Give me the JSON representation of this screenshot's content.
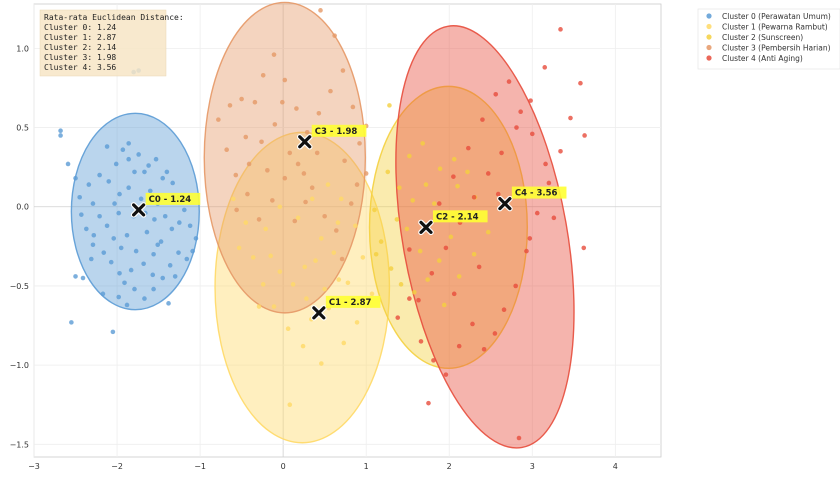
{
  "chart_data": {
    "type": "scatter",
    "title": "",
    "xlabel": "",
    "ylabel": "",
    "xlim": [
      -3.0,
      4.55
    ],
    "ylim": [
      -1.58,
      1.28
    ],
    "grid": true,
    "x_ticks": [
      -3,
      -2,
      -1,
      0,
      1,
      2,
      3,
      4
    ],
    "y_ticks": [
      -1.5,
      -1.0,
      -0.5,
      0.0,
      0.5,
      1.0
    ],
    "x_tick_labels": [
      "−3",
      "−2",
      "−1",
      "0",
      "1",
      "2",
      "3",
      "4"
    ],
    "y_tick_labels": [
      "−1.5",
      "−1.0",
      "−0.5",
      "0.0",
      "0.5",
      "1.0"
    ],
    "legend_position": "outside-right",
    "stats_box": {
      "lines": [
        "Rata-rata Euclidean Distance:",
        "Cluster 0: 1.24",
        "Cluster 1: 2.87",
        "Cluster 2: 2.14",
        "Cluster 3: 1.98",
        "Cluster 4: 3.56"
      ]
    },
    "series": [
      {
        "name": "Cluster 0 (Perawatan Umum)",
        "color": "#5b9bd5",
        "centroid": {
          "x": -1.74,
          "y": -0.02,
          "label": "C0 - 1.24"
        },
        "ellipse": {
          "cx": -1.78,
          "cy": -0.03,
          "rx": 0.77,
          "ry": 0.62,
          "angle": 0
        },
        "points": [
          [
            -2.68,
            0.48
          ],
          [
            -2.68,
            0.45
          ],
          [
            -2.59,
            0.27
          ],
          [
            -2.5,
            0.18
          ],
          [
            -2.45,
            0.06
          ],
          [
            -2.34,
            0.14
          ],
          [
            -2.21,
            0.2
          ],
          [
            -2.12,
            0.38
          ],
          [
            -2.01,
            0.27
          ],
          [
            -1.93,
            0.36
          ],
          [
            -1.86,
            0.4
          ],
          [
            -1.86,
            0.3
          ],
          [
            -1.79,
            0.22
          ],
          [
            -1.74,
            0.33
          ],
          [
            -1.67,
            0.22
          ],
          [
            -1.62,
            0.26
          ],
          [
            -1.53,
            0.3
          ],
          [
            -1.45,
            0.18
          ],
          [
            -1.33,
            0.15
          ],
          [
            -1.26,
            0.06
          ],
          [
            -1.19,
            -0.02
          ],
          [
            -1.12,
            -0.12
          ],
          [
            -1.05,
            -0.2
          ],
          [
            -1.09,
            -0.28
          ],
          [
            -1.16,
            -0.33
          ],
          [
            -1.26,
            -0.29
          ],
          [
            -1.36,
            -0.37
          ],
          [
            -1.45,
            -0.45
          ],
          [
            -1.56,
            -0.52
          ],
          [
            -1.67,
            -0.58
          ],
          [
            -1.79,
            -0.52
          ],
          [
            -1.91,
            -0.48
          ],
          [
            -1.97,
            -0.42
          ],
          [
            -2.07,
            -0.35
          ],
          [
            -2.16,
            -0.29
          ],
          [
            -2.31,
            -0.33
          ],
          [
            -2.41,
            -0.45
          ],
          [
            -2.5,
            -0.44
          ],
          [
            -2.55,
            -0.73
          ],
          [
            -2.05,
            -0.79
          ],
          [
            -1.98,
            -0.04
          ],
          [
            -2.21,
            -0.06
          ],
          [
            -2.29,
            0.02
          ],
          [
            -2.43,
            -0.05
          ],
          [
            -2.37,
            -0.14
          ],
          [
            -2.28,
            -0.18
          ],
          [
            -2.12,
            -0.12
          ],
          [
            -2.04,
            -0.2
          ],
          [
            -1.95,
            -0.26
          ],
          [
            -1.88,
            -0.18
          ],
          [
            -1.8,
            -0.06
          ],
          [
            -1.71,
            0.05
          ],
          [
            -1.6,
            0.1
          ],
          [
            -1.51,
            0.02
          ],
          [
            -1.42,
            -0.06
          ],
          [
            -1.34,
            -0.14
          ],
          [
            -1.47,
            -0.22
          ],
          [
            -1.56,
            -0.3
          ],
          [
            -1.68,
            -0.36
          ],
          [
            -1.77,
            -0.28
          ],
          [
            -1.64,
            -0.16
          ],
          [
            -1.55,
            -0.08
          ],
          [
            -1.86,
            0.12
          ],
          [
            -1.97,
            0.08
          ],
          [
            -2.1,
            0.16
          ],
          [
            -1.4,
            0.22
          ],
          [
            -1.3,
            -0.44
          ],
          [
            -1.38,
            -0.61
          ],
          [
            -1.25,
            -0.1
          ],
          [
            -1.74,
            0.86
          ],
          [
            -1.8,
            0.85
          ],
          [
            -2.17,
            -0.55
          ],
          [
            -1.88,
            -0.62
          ],
          [
            -1.57,
            -0.43
          ],
          [
            -2.29,
            -0.24
          ],
          [
            -1.98,
            -0.57
          ],
          [
            -1.51,
            -0.24
          ],
          [
            -1.83,
            -0.4
          ],
          [
            -2.03,
            0.02
          ],
          [
            -1.66,
            -0.04
          ]
        ]
      },
      {
        "name": "Cluster 1 (Pewarna Rambut)",
        "color": "#ffd966",
        "centroid": {
          "x": 0.43,
          "y": -0.67,
          "label": "C1 - 2.87"
        },
        "ellipse": {
          "cx": 0.23,
          "cy": -0.51,
          "rx": 1.05,
          "ry": 0.98,
          "angle": 0
        },
        "points": [
          [
            -0.6,
            0.05
          ],
          [
            -0.45,
            -0.1
          ],
          [
            -0.36,
            -0.32
          ],
          [
            -0.24,
            -0.49
          ],
          [
            -0.11,
            -0.63
          ],
          [
            0.06,
            -0.77
          ],
          [
            0.24,
            -0.88
          ],
          [
            0.34,
            -0.71
          ],
          [
            0.5,
            -0.52
          ],
          [
            0.67,
            -0.46
          ],
          [
            0.78,
            -0.48
          ],
          [
            0.61,
            -0.29
          ],
          [
            0.46,
            -0.2
          ],
          [
            0.26,
            -0.38
          ],
          [
            0.12,
            -0.49
          ],
          [
            -0.04,
            -0.41
          ],
          [
            -0.21,
            -0.14
          ],
          [
            -0.04,
            0.0
          ],
          [
            0.18,
            -0.07
          ],
          [
            0.35,
            0.05
          ],
          [
            0.54,
            0.14
          ],
          [
            0.7,
            0.05
          ],
          [
            0.87,
            -0.12
          ],
          [
            0.96,
            -0.32
          ],
          [
            1.07,
            -0.55
          ],
          [
            0.89,
            -0.73
          ],
          [
            0.73,
            -0.86
          ],
          [
            0.46,
            -0.99
          ],
          [
            0.08,
            -1.25
          ],
          [
            0.28,
            -0.58
          ],
          [
            -0.29,
            -0.63
          ],
          [
            0.55,
            -0.64
          ],
          [
            -0.53,
            -0.26
          ],
          [
            0.39,
            -0.34
          ],
          [
            0.66,
            -0.1
          ],
          [
            -0.15,
            -0.31
          ]
        ]
      },
      {
        "name": "Cluster 2 (Sunscreen)",
        "color": "#f4d03f",
        "centroid": {
          "x": 1.72,
          "y": -0.13,
          "label": "C2 - 2.14"
        },
        "ellipse": {
          "cx": 1.99,
          "cy": -0.13,
          "rx": 0.95,
          "ry": 0.89,
          "angle": 0
        },
        "points": [
          [
            1.1,
            -0.02
          ],
          [
            1.18,
            -0.22
          ],
          [
            1.3,
            -0.39
          ],
          [
            1.42,
            -0.49
          ],
          [
            1.58,
            -0.54
          ],
          [
            1.74,
            -0.46
          ],
          [
            1.88,
            -0.34
          ],
          [
            2.02,
            -0.19
          ],
          [
            2.17,
            -0.06
          ],
          [
            2.31,
            0.06
          ],
          [
            2.22,
            0.22
          ],
          [
            2.06,
            0.3
          ],
          [
            1.89,
            0.24
          ],
          [
            1.72,
            0.14
          ],
          [
            1.56,
            0.04
          ],
          [
            1.4,
            0.12
          ],
          [
            1.52,
            0.32
          ],
          [
            1.68,
            0.4
          ],
          [
            1.49,
            -0.14
          ],
          [
            1.65,
            -0.28
          ],
          [
            1.94,
            -0.62
          ],
          [
            2.12,
            -0.44
          ],
          [
            2.3,
            -0.3
          ],
          [
            2.47,
            -0.16
          ],
          [
            1.26,
            0.22
          ],
          [
            1.12,
            -0.3
          ],
          [
            1.82,
            0.02
          ],
          [
            1.37,
            -0.08
          ],
          [
            2.1,
            0.13
          ],
          [
            1.28,
            0.64
          ]
        ]
      },
      {
        "name": "Cluster 3 (Pembersih Harian)",
        "color": "#e59866",
        "centroid": {
          "x": 0.26,
          "y": 0.41,
          "label": "C3 - 1.98"
        },
        "ellipse": {
          "cx": 0.02,
          "cy": 0.31,
          "rx": 0.97,
          "ry": 0.98,
          "angle": 0
        },
        "points": [
          [
            -0.78,
            0.55
          ],
          [
            -0.68,
            0.36
          ],
          [
            -0.57,
            0.2
          ],
          [
            -0.45,
            0.44
          ],
          [
            -0.34,
            0.66
          ],
          [
            -0.24,
            0.83
          ],
          [
            -0.11,
            0.96
          ],
          [
            0.02,
            0.8
          ],
          [
            0.16,
            0.62
          ],
          [
            0.29,
            0.47
          ],
          [
            0.43,
            0.59
          ],
          [
            0.57,
            0.73
          ],
          [
            0.72,
            0.86
          ],
          [
            0.84,
            0.63
          ],
          [
            0.92,
            0.4
          ],
          [
            1.0,
            0.21
          ],
          [
            0.82,
            0.02
          ],
          [
            0.64,
            -0.15
          ],
          [
            0.5,
            -0.06
          ],
          [
            0.35,
            0.12
          ],
          [
            0.18,
            0.27
          ],
          [
            0.02,
            0.18
          ],
          [
            -0.13,
            0.04
          ],
          [
            -0.29,
            -0.08
          ],
          [
            -0.43,
            0.08
          ],
          [
            -0.56,
            -0.02
          ],
          [
            -0.41,
            0.27
          ],
          [
            -0.26,
            0.41
          ],
          [
            -0.1,
            0.52
          ],
          [
            0.08,
            0.34
          ],
          [
            0.25,
            0.21
          ],
          [
            0.41,
            0.34
          ],
          [
            0.58,
            0.46
          ],
          [
            0.74,
            0.29
          ],
          [
            0.89,
            0.14
          ],
          [
            1.0,
            0.51
          ],
          [
            0.62,
            1.08
          ],
          [
            0.45,
            1.24
          ],
          [
            -0.01,
            0.66
          ],
          [
            -0.5,
            0.68
          ],
          [
            0.27,
            0.03
          ],
          [
            -0.19,
            0.23
          ],
          [
            0.71,
            -0.33
          ],
          [
            0.14,
            -0.09
          ],
          [
            -0.64,
            0.64
          ]
        ]
      },
      {
        "name": "Cluster 4 (Anti Aging)",
        "color": "#e74c3c",
        "centroid": {
          "x": 2.67,
          "y": 0.02,
          "label": "C4 - 3.56"
        },
        "ellipse": {
          "cx": 2.43,
          "cy": -0.19,
          "rx": 0.99,
          "ry": 1.35,
          "angle": 10
        },
        "points": [
          [
            1.38,
            -0.7
          ],
          [
            1.52,
            -0.58
          ],
          [
            1.66,
            -0.85
          ],
          [
            1.81,
            -0.97
          ],
          [
            1.96,
            -1.06
          ],
          [
            2.12,
            -0.88
          ],
          [
            2.28,
            -0.74
          ],
          [
            2.42,
            -0.9
          ],
          [
            2.55,
            -0.8
          ],
          [
            2.66,
            -0.65
          ],
          [
            2.8,
            -0.5
          ],
          [
            2.93,
            -0.28
          ],
          [
            3.06,
            -0.04
          ],
          [
            3.2,
            0.15
          ],
          [
            3.34,
            0.35
          ],
          [
            3.46,
            0.56
          ],
          [
            3.58,
            0.78
          ],
          [
            3.34,
            1.12
          ],
          [
            3.15,
            0.88
          ],
          [
            2.98,
            0.67
          ],
          [
            2.81,
            0.5
          ],
          [
            2.63,
            0.34
          ],
          [
            2.47,
            0.21
          ],
          [
            2.3,
            0.06
          ],
          [
            2.13,
            -0.1
          ],
          [
            1.96,
            -0.26
          ],
          [
            1.79,
            -0.42
          ],
          [
            1.63,
            -0.59
          ],
          [
            1.52,
            -0.27
          ],
          [
            1.7,
            -0.13
          ],
          [
            1.88,
            0.02
          ],
          [
            2.05,
            0.19
          ],
          [
            2.23,
            0.37
          ],
          [
            2.4,
            0.55
          ],
          [
            2.56,
            0.71
          ],
          [
            2.72,
            0.79
          ],
          [
            2.86,
            0.6
          ],
          [
            3.0,
            0.46
          ],
          [
            3.16,
            0.27
          ],
          [
            3.63,
            0.45
          ],
          [
            3.62,
            -0.26
          ],
          [
            2.84,
            -1.46
          ],
          [
            2.36,
            -0.38
          ],
          [
            1.75,
            -1.24
          ],
          [
            2.59,
            0.08
          ],
          [
            3.26,
            -0.07
          ],
          [
            2.06,
            -0.55
          ],
          [
            2.97,
            -0.2
          ]
        ]
      }
    ]
  }
}
